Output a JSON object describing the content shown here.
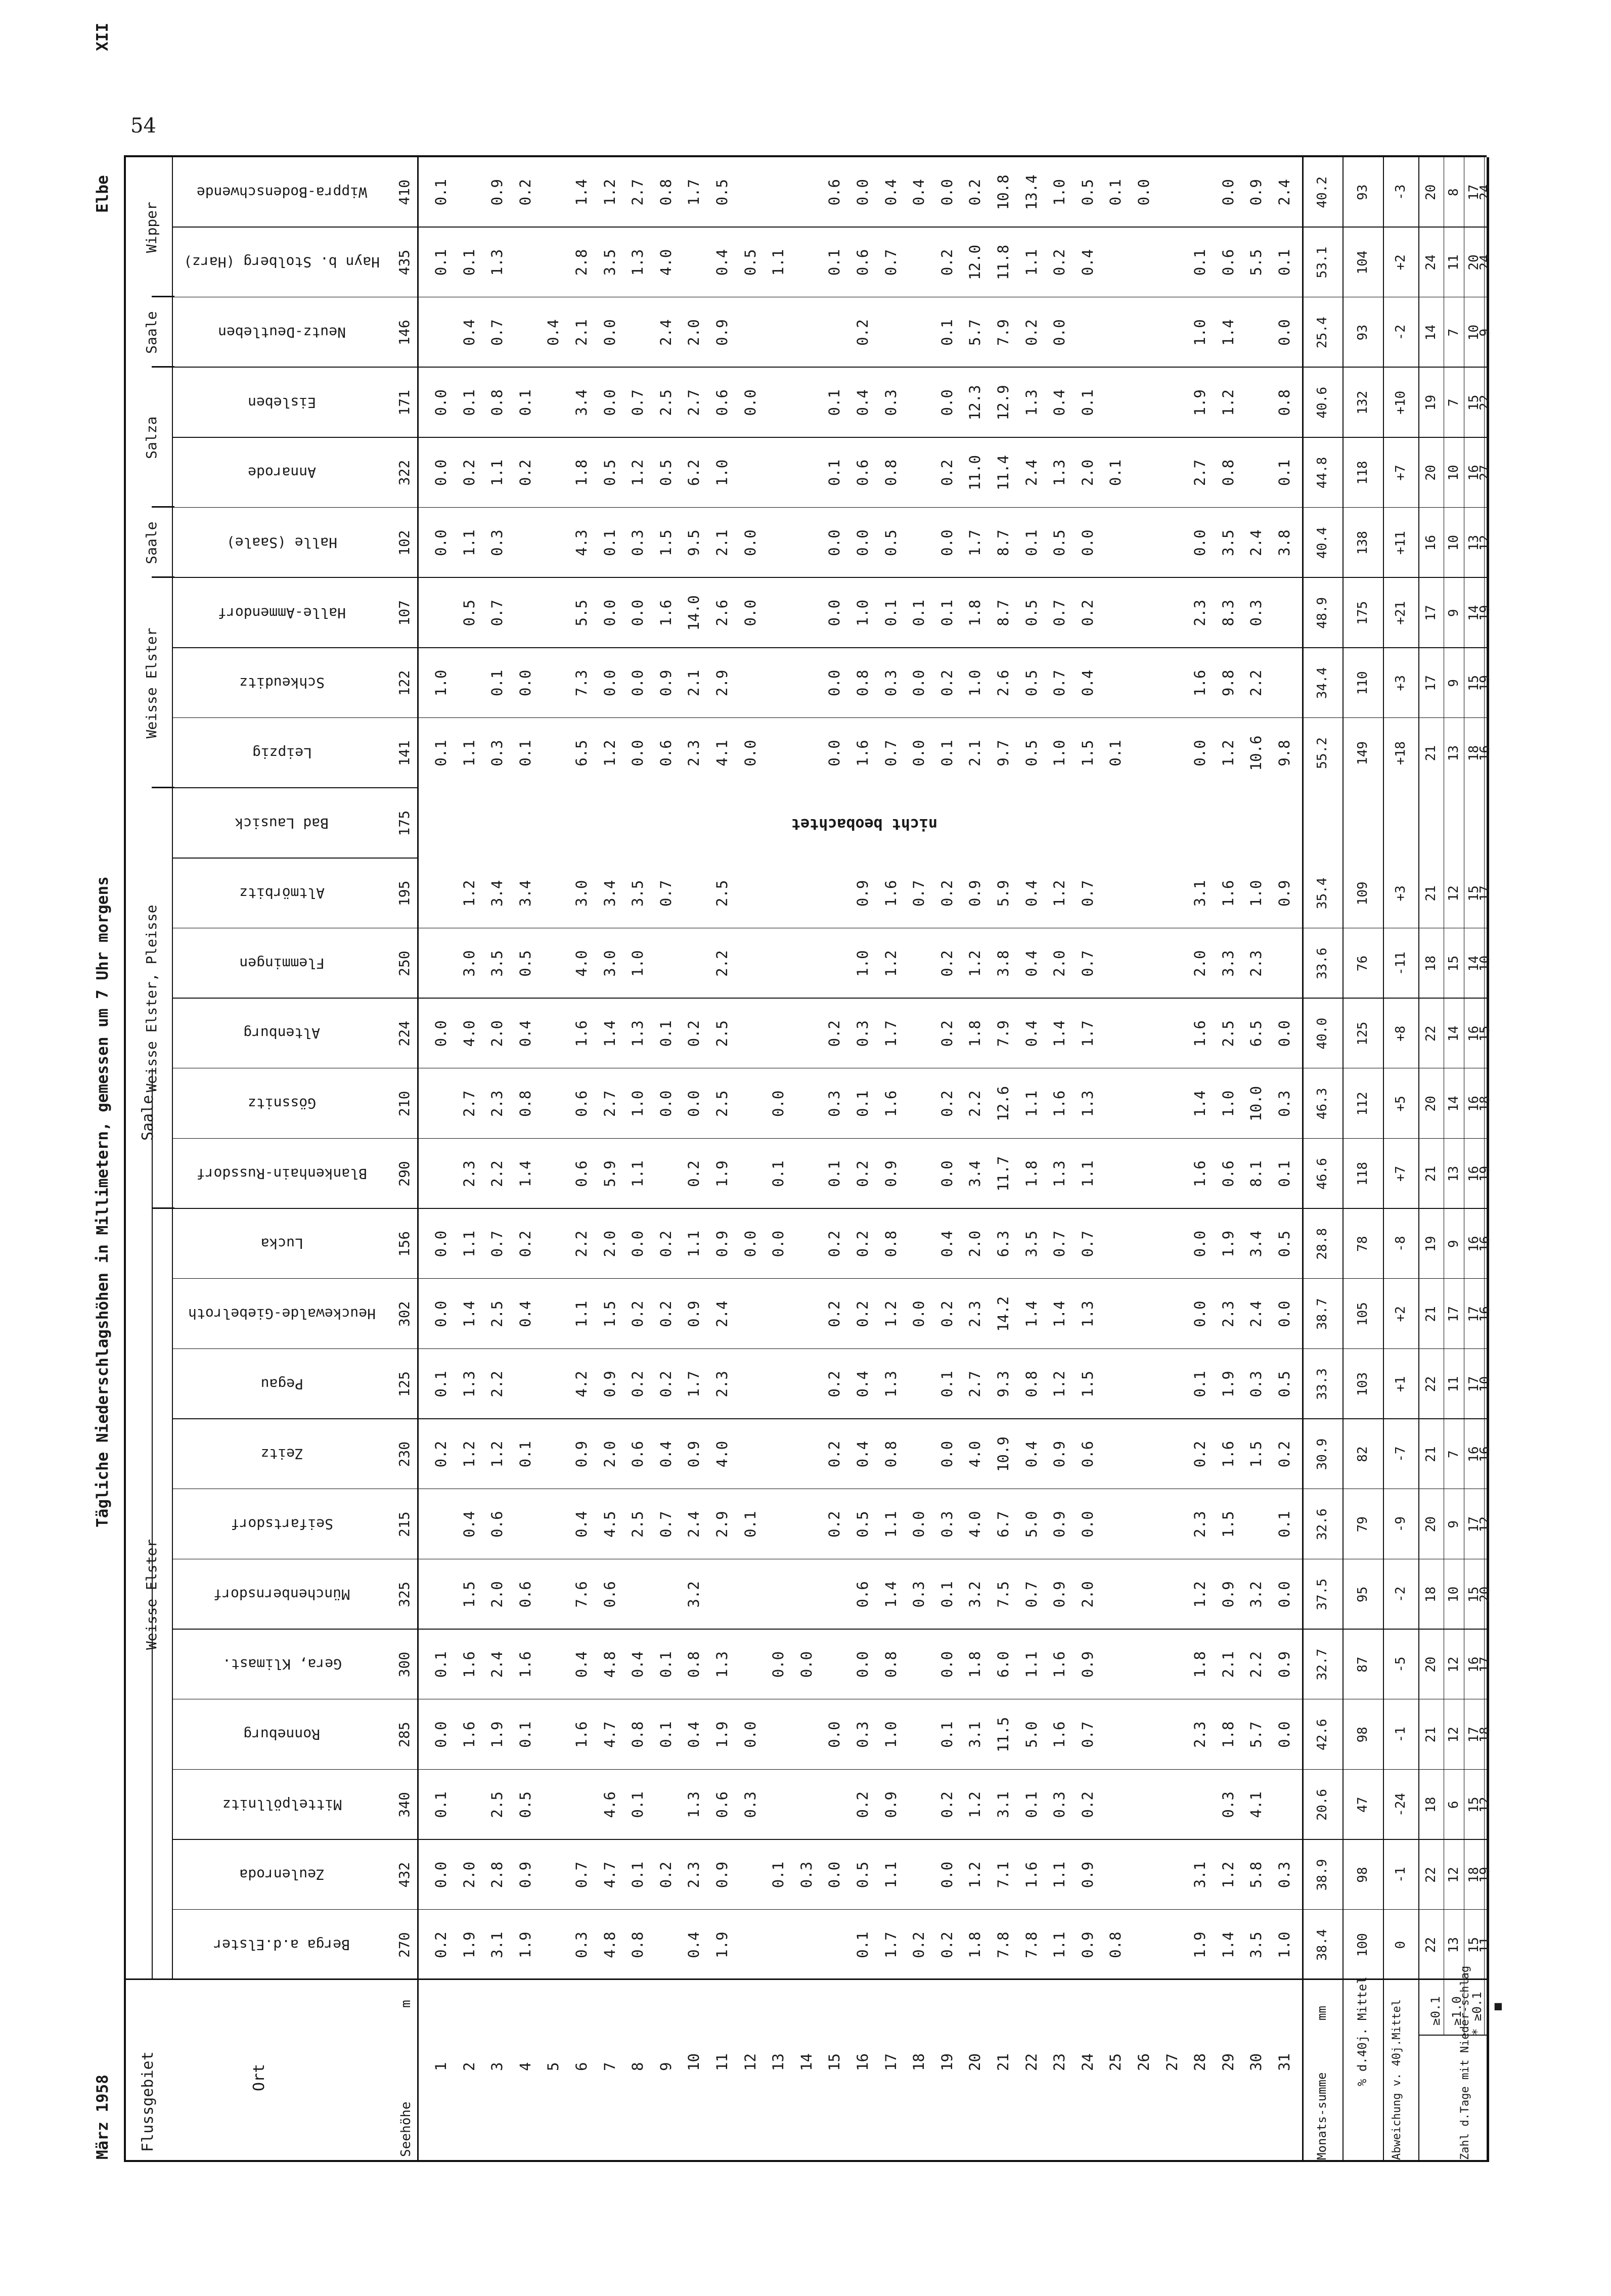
{
  "page": {
    "number": "54",
    "date_label": "März 1958",
    "title": "Tägliche Niederschlagshöhen in Millimetern, gemessen um 7 Uhr morgens",
    "region": "Elbe",
    "sheet": "XII"
  },
  "table": {
    "header_flussgebiet": "Flussgebiet",
    "header_ort": "Ort",
    "header_seehoehe": "Seehöhe",
    "header_m": "m",
    "group_saale": "Saale",
    "river_groups": [
      "Weisse Elster",
      "Weisse Elster, Pleisse",
      "Weisse Elster",
      "Saale",
      "Salza",
      "Saale",
      "Wipper"
    ],
    "stations": [
      "Berga a.d.Elster",
      "Zeulenroda",
      "Mittelpöllnitz",
      "Ronneburg",
      "Gera, Klimast.",
      "Münchenbernsdorf",
      "Seifartsdorf",
      "Zeitz",
      "Pegau",
      "Heuckewalde-Giebelroth",
      "Lucka",
      "Blankenhain-Russdorf",
      "Gössnitz",
      "Altenburg",
      "Flemmingen",
      "Altmörbitz",
      "Bad Lausick",
      "Leipzig",
      "Schkeuditz",
      "Halle-Ammendorf",
      "Halle (Saale)",
      "Annarode",
      "Eisleben",
      "Neutz-Deutleben",
      "Hayn b. Stolberg (Harz)",
      "Wippra-Bodenschwende"
    ],
    "elevations": [
      "270",
      "432",
      "340",
      "285",
      "300",
      "325",
      "215",
      "230",
      "125",
      "302",
      "156",
      "290",
      "210",
      "224",
      "250",
      "195",
      "175",
      "141",
      "122",
      "107",
      "102",
      "322",
      "171",
      "146",
      "435",
      "410"
    ],
    "days": [
      "1",
      "2",
      "3",
      "4",
      "5",
      "6",
      "7",
      "8",
      "9",
      "10",
      "11",
      "12",
      "13",
      "14",
      "15",
      "16",
      "17",
      "18",
      "19",
      "20",
      "21",
      "22",
      "23",
      "24",
      "25",
      "26",
      "27",
      "28",
      "29",
      "30",
      "31"
    ],
    "not_observed": "nicht beobachtet",
    "values": [
      [
        "0.2",
        "1.9",
        "3.1",
        "1.9",
        "",
        "0.3",
        "4.8",
        "0.8",
        "",
        "0.4",
        "1.9",
        "",
        "",
        "",
        "",
        "0.1",
        "1.7",
        "0.2",
        "0.2",
        "1.8",
        "7.8",
        "7.8",
        "1.1",
        "0.9",
        "0.8",
        "",
        "",
        "1.9",
        "1.4",
        "3.5",
        "1.0"
      ],
      [
        "0.0",
        "2.0",
        "2.8",
        "0.9",
        "",
        "0.7",
        "4.7",
        "0.1",
        "0.2",
        "2.3",
        "0.9",
        "",
        "0.1",
        "0.3",
        "0.0",
        "0.5",
        "1.1",
        "",
        "0.0",
        "1.2",
        "7.1",
        "1.6",
        "1.1",
        "0.9",
        "",
        "",
        "",
        "3.1",
        "1.2",
        "5.8",
        "0.3"
      ],
      [
        "0.1",
        "",
        "2.5",
        "0.5",
        "",
        "",
        "4.6",
        "0.1",
        "",
        "1.3",
        "0.6",
        "0.3",
        "",
        "",
        "",
        "0.2",
        "0.9",
        "",
        "0.2",
        "1.2",
        "3.1",
        "0.1",
        "0.3",
        "0.2",
        "",
        "",
        "",
        "",
        "0.3",
        "4.1",
        ""
      ],
      [
        "0.0",
        "1.6",
        "1.9",
        "0.1",
        "",
        "1.6",
        "4.7",
        "0.8",
        "0.1",
        "0.4",
        "1.9",
        "0.0",
        "",
        "",
        "0.0",
        "0.3",
        "1.0",
        "",
        "0.1",
        "3.1",
        "11.5",
        "5.0",
        "1.6",
        "0.7",
        "",
        "",
        "",
        "2.3",
        "1.8",
        "5.7",
        "0.0"
      ],
      [
        "0.1",
        "1.6",
        "2.4",
        "1.6",
        "",
        "0.4",
        "4.8",
        "0.4",
        "0.1",
        "0.8",
        "1.3",
        "",
        "0.0",
        "0.0",
        "",
        "0.0",
        "0.8",
        "",
        "0.0",
        "1.8",
        "6.0",
        "1.1",
        "1.6",
        "0.9",
        "",
        "",
        "",
        "1.8",
        "2.1",
        "2.2",
        "0.9"
      ],
      [
        "",
        "1.5",
        "2.0",
        "0.6",
        "",
        "7.6",
        "0.6",
        "",
        "",
        "3.2",
        "",
        "",
        "",
        "",
        "",
        "0.6",
        "1.4",
        "0.3",
        "0.1",
        "3.2",
        "7.5",
        "0.7",
        "0.9",
        "2.0",
        "",
        "",
        "",
        "1.2",
        "0.9",
        "3.2",
        "0.0"
      ],
      [
        "",
        "0.4",
        "0.6",
        "",
        "",
        "0.4",
        "4.5",
        "2.5",
        "0.7",
        "2.4",
        "2.9",
        "0.1",
        "",
        "",
        "0.2",
        "0.5",
        "1.1",
        "0.0",
        "0.3",
        "4.0",
        "6.7",
        "5.0",
        "0.9",
        "0.0",
        "",
        "",
        "",
        "2.3",
        "1.5",
        "",
        "0.1"
      ],
      [
        "0.2",
        "1.2",
        "1.2",
        "0.1",
        "",
        "0.9",
        "2.0",
        "0.6",
        "0.4",
        "0.9",
        "4.0",
        "",
        "",
        "",
        "0.2",
        "0.4",
        "0.8",
        "",
        "0.0",
        "4.0",
        "10.9",
        "0.4",
        "0.9",
        "0.6",
        "",
        "",
        "",
        "0.2",
        "1.6",
        "1.5",
        "0.2"
      ],
      [
        "0.1",
        "1.3",
        "2.2",
        "",
        "",
        "4.2",
        "0.9",
        "0.2",
        "0.2",
        "1.7",
        "2.3",
        "",
        "",
        "",
        "0.2",
        "0.4",
        "1.3",
        "",
        "0.1",
        "2.7",
        "9.3",
        "0.8",
        "1.2",
        "1.5",
        "",
        "",
        "",
        "0.1",
        "1.9",
        "0.3",
        "0.5"
      ],
      [
        "0.0",
        "1.4",
        "2.5",
        "0.4",
        "",
        "1.1",
        "1.5",
        "0.2",
        "0.2",
        "0.9",
        "2.4",
        "",
        "",
        "",
        "0.2",
        "0.2",
        "1.2",
        "0.0",
        "0.2",
        "2.3",
        "14.2",
        "1.4",
        "1.4",
        "1.3",
        "",
        "",
        "",
        "0.0",
        "2.3",
        "2.4",
        "0.0"
      ],
      [
        "0.0",
        "1.1",
        "0.7",
        "0.2",
        "",
        "2.2",
        "2.0",
        "0.0",
        "0.2",
        "1.1",
        "0.9",
        "0.0",
        "0.0",
        "",
        "0.2",
        "0.2",
        "0.8",
        "",
        "0.4",
        "2.0",
        "6.3",
        "3.5",
        "0.7",
        "0.7",
        "",
        "",
        "",
        "0.0",
        "1.9",
        "3.4",
        "0.5"
      ],
      [
        "",
        "2.3",
        "2.2",
        "1.4",
        "",
        "0.6",
        "5.9",
        "1.1",
        "",
        "0.2",
        "1.9",
        "",
        "0.1",
        "",
        "0.1",
        "0.2",
        "0.9",
        "",
        "0.0",
        "3.4",
        "11.7",
        "1.8",
        "1.3",
        "1.1",
        "",
        "",
        "",
        "1.6",
        "0.6",
        "8.1",
        "0.1"
      ],
      [
        "",
        "2.7",
        "2.3",
        "0.8",
        "",
        "0.6",
        "2.7",
        "1.0",
        "0.0",
        "0.0",
        "2.5",
        "",
        "0.0",
        "",
        "0.3",
        "0.1",
        "1.6",
        "",
        "0.2",
        "2.2",
        "12.6",
        "1.1",
        "1.6",
        "1.3",
        "",
        "",
        "",
        "1.4",
        "1.0",
        "10.0",
        "0.3"
      ],
      [
        "0.0",
        "4.0",
        "2.0",
        "0.4",
        "",
        "1.6",
        "1.4",
        "1.3",
        "0.1",
        "0.2",
        "2.5",
        "",
        "",
        "",
        "0.2",
        "0.3",
        "1.7",
        "",
        "0.2",
        "1.8",
        "7.9",
        "0.4",
        "1.4",
        "1.7",
        "",
        "",
        "",
        "1.6",
        "2.5",
        "6.5",
        "0.0"
      ],
      [
        "",
        "3.0",
        "3.5",
        "0.5",
        "",
        "4.0",
        "3.0",
        "1.0",
        "",
        "",
        "2.2",
        "",
        "",
        "",
        "",
        "1.0",
        "1.2",
        "",
        "0.2",
        "1.2",
        "3.8",
        "0.4",
        "2.0",
        "0.7",
        "",
        "",
        "",
        "2.0",
        "3.3",
        "2.3",
        ""
      ],
      [
        "",
        "1.2",
        "3.4",
        "3.4",
        "",
        "3.0",
        "3.4",
        "3.5",
        "0.7",
        "",
        "2.5",
        "",
        "",
        "",
        "",
        "0.9",
        "1.6",
        "0.7",
        "0.2",
        "0.9",
        "5.9",
        "0.4",
        "1.2",
        "0.7",
        "",
        "",
        "",
        "3.1",
        "1.6",
        "1.0",
        "0.9"
      ],
      [
        "",
        "",
        "",
        "",
        "",
        "",
        "",
        "",
        "",
        "",
        "",
        "",
        "",
        "",
        "",
        "",
        "",
        "",
        "",
        "",
        "",
        "",
        "",
        "",
        "",
        "",
        "",
        "",
        "",
        "",
        ""
      ],
      [
        "0.1",
        "1.1",
        "0.3",
        "0.1",
        "",
        "6.5",
        "1.2",
        "0.0",
        "0.6",
        "2.3",
        "4.1",
        "0.0",
        "",
        "",
        "0.0",
        "1.6",
        "0.7",
        "0.0",
        "0.1",
        "2.1",
        "9.7",
        "0.5",
        "1.0",
        "1.5",
        "0.1",
        "",
        "",
        "0.0",
        "1.2",
        "10.6",
        "9.8"
      ],
      [
        "1.0",
        "",
        "0.1",
        "0.0",
        "",
        "7.3",
        "0.0",
        "0.0",
        "0.9",
        "2.1",
        "2.9",
        "",
        "",
        "",
        "0.0",
        "0.8",
        "0.3",
        "0.0",
        "0.2",
        "1.0",
        "2.6",
        "0.5",
        "0.7",
        "0.4",
        "",
        "",
        "",
        "1.6",
        "9.8",
        "2.2",
        ""
      ],
      [
        "",
        "0.5",
        "0.7",
        "",
        "",
        "5.5",
        "0.0",
        "0.0",
        "1.6",
        "14.0",
        "2.6",
        "0.0",
        "",
        "",
        "0.0",
        "1.0",
        "0.1",
        "0.1",
        "0.1",
        "1.8",
        "8.7",
        "0.5",
        "0.7",
        "0.2",
        "",
        "",
        "",
        "2.3",
        "8.3",
        "0.3",
        ""
      ],
      [
        "0.0",
        "1.1",
        "0.3",
        "",
        "",
        "4.3",
        "0.1",
        "0.3",
        "1.5",
        "9.5",
        "2.1",
        "0.0",
        "",
        "",
        "0.0",
        "0.0",
        "0.5",
        "",
        "0.0",
        "1.7",
        "8.7",
        "0.1",
        "0.5",
        "0.0",
        "",
        "",
        "",
        "0.0",
        "3.5",
        "2.4",
        "3.8"
      ],
      [
        "0.0",
        "0.2",
        "1.1",
        "0.2",
        "",
        "1.8",
        "0.5",
        "1.2",
        "0.5",
        "6.2",
        "1.0",
        "",
        "",
        "",
        "0.1",
        "0.6",
        "0.8",
        "",
        "0.2",
        "11.0",
        "11.4",
        "2.4",
        "1.3",
        "2.0",
        "0.1",
        "",
        "",
        "2.7",
        "0.8",
        "",
        "0.1"
      ],
      [
        "0.0",
        "0.1",
        "0.8",
        "0.1",
        "",
        "3.4",
        "0.0",
        "0.7",
        "2.5",
        "2.7",
        "0.6",
        "0.0",
        "",
        "",
        "0.1",
        "0.4",
        "0.3",
        "",
        "0.0",
        "12.3",
        "12.9",
        "1.3",
        "0.4",
        "0.1",
        "",
        "",
        "",
        "1.9",
        "1.2",
        "",
        "0.8"
      ],
      [
        "",
        "0.4",
        "0.7",
        "",
        "0.4",
        "2.1",
        "0.0",
        "",
        "2.4",
        "2.0",
        "0.9",
        "",
        "",
        "",
        "",
        "0.2",
        "",
        "",
        "0.1",
        "5.7",
        "7.9",
        "0.2",
        "0.0",
        "",
        "",
        "",
        "",
        "1.0",
        "1.4",
        "",
        "0.0"
      ],
      [
        "0.1",
        "0.1",
        "1.3",
        "",
        "",
        "2.8",
        "3.5",
        "1.3",
        "4.0",
        "",
        "0.4",
        "0.5",
        "1.1",
        "",
        "0.1",
        "0.6",
        "0.7",
        "",
        "0.2",
        "12.0",
        "11.8",
        "1.1",
        "0.2",
        "0.4",
        "",
        "",
        "",
        "0.1",
        "0.6",
        "5.5",
        "0.1"
      ],
      [
        "0.1",
        "",
        "0.9",
        "0.2",
        "",
        "1.4",
        "1.2",
        "2.7",
        "0.8",
        "1.7",
        "0.5",
        "",
        "",
        "",
        "0.6",
        "0.0",
        "0.4",
        "0.4",
        "0.0",
        "0.2",
        "10.8",
        "13.4",
        "1.0",
        "0.5",
        "0.1",
        "0.0",
        "",
        "",
        "0.0",
        "0.9",
        "2.4"
      ]
    ],
    "summary_labels": {
      "monthly_sum_label": "Monats-summe",
      "mm": "mm",
      "pct_label": "% d.40j. Mittel",
      "deviation_label": "Abweichung v. 40j.Mittel",
      "days_label": "Zahl d.Tage mit Nieder-schlag",
      "th1": "≥0.1",
      "th2": "≥1.0",
      "th3": "* ≥0.1",
      "th4": "■"
    },
    "summary": {
      "sum": [
        "38.4",
        "38.9",
        "20.6",
        "42.6",
        "32.7",
        "37.5",
        "32.6",
        "30.9",
        "33.3",
        "38.7",
        "28.8",
        "46.6",
        "46.3",
        "40.0",
        "33.6",
        "35.4",
        "",
        "55.2",
        "34.4",
        "48.9",
        "40.4",
        "44.8",
        "40.6",
        "25.4",
        "53.1",
        "40.2"
      ],
      "pct": [
        "100",
        "98",
        "47",
        "98",
        "87",
        "95",
        "79",
        "82",
        "103",
        "105",
        "78",
        "118",
        "112",
        "125",
        "76",
        "109",
        "",
        "149",
        "110",
        "175",
        "138",
        "118",
        "132",
        "93",
        "104",
        "93"
      ],
      "dev": [
        "0",
        "-1",
        "-24",
        "-1",
        "-5",
        "-2",
        "-9",
        "-7",
        "+1",
        "+2",
        "-8",
        "+7",
        "+5",
        "+8",
        "-11",
        "+3",
        "",
        "+18",
        "+3",
        "+21",
        "+11",
        "+7",
        "+10",
        "-2",
        "+2",
        "-3"
      ],
      "d01": [
        "22",
        "22",
        "18",
        "21",
        "20",
        "18",
        "20",
        "21",
        "22",
        "21",
        "19",
        "21",
        "20",
        "22",
        "18",
        "21",
        "",
        "21",
        "17",
        "17",
        "16",
        "20",
        "19",
        "14",
        "24",
        "20"
      ],
      "d10": [
        "13",
        "12",
        "6",
        "12",
        "12",
        "10",
        "9",
        "7",
        "11",
        "17",
        "9",
        "13",
        "14",
        "14",
        "15",
        "12",
        "",
        "13",
        "9",
        "9",
        "10",
        "10",
        "7",
        "7",
        "11",
        "8"
      ],
      "dsnow": [
        "15",
        "18",
        "15",
        "17",
        "16",
        "15",
        "17",
        "16",
        "17",
        "17",
        "16",
        "16",
        "16",
        "16",
        "14",
        "15",
        "",
        "18",
        "15",
        "14",
        "13",
        "16",
        "15",
        "10",
        "20",
        "17"
      ],
      "dother": [
        "11",
        "19",
        "12",
        "18",
        "17",
        "20",
        "12",
        "16",
        "10",
        "16",
        "16",
        "19",
        "18",
        "15",
        "10",
        "17",
        "",
        "16",
        "19",
        "19",
        "12",
        "27",
        "22",
        "9",
        "24",
        "24"
      ]
    }
  }
}
